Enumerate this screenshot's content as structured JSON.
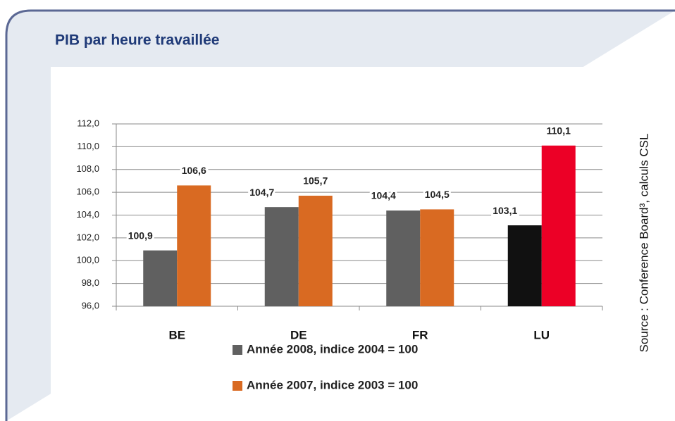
{
  "chart_data": {
    "type": "bar",
    "title": "PIB par heure travaillée",
    "source": "Source : Conference Board³, calculs CSL",
    "categories": [
      "BE",
      "DE",
      "FR",
      "LU"
    ],
    "series": [
      {
        "name": "Année 2008, indice 2004 = 100",
        "color": "#606060",
        "colors": [
          "#606060",
          "#606060",
          "#606060",
          "#111111"
        ],
        "values": [
          100.9,
          104.7,
          104.4,
          103.1
        ],
        "value_labels": [
          "100,9",
          "104,7",
          "104,4",
          "103,1"
        ]
      },
      {
        "name": "Année 2007, indice 2003 = 100",
        "color": "#d96a22",
        "colors": [
          "#d96a22",
          "#d96a22",
          "#d96a22",
          "#ec0026"
        ],
        "values": [
          106.6,
          105.7,
          104.5,
          110.1
        ],
        "value_labels": [
          "106,6",
          "105,7",
          "104,5",
          "110,1"
        ]
      }
    ],
    "ylim": [
      96,
      112
    ],
    "yticks": [
      {
        "value": 96,
        "label": "96,0"
      },
      {
        "value": 98,
        "label": "98,0"
      },
      {
        "value": 100,
        "label": "100,0"
      },
      {
        "value": 102,
        "label": "102,0"
      },
      {
        "value": 104,
        "label": "104,0"
      },
      {
        "value": 106,
        "label": "106,0"
      },
      {
        "value": 108,
        "label": "108,0"
      },
      {
        "value": 110,
        "label": "110,0"
      },
      {
        "value": 112,
        "label": "112,0"
      }
    ],
    "grid": true
  }
}
